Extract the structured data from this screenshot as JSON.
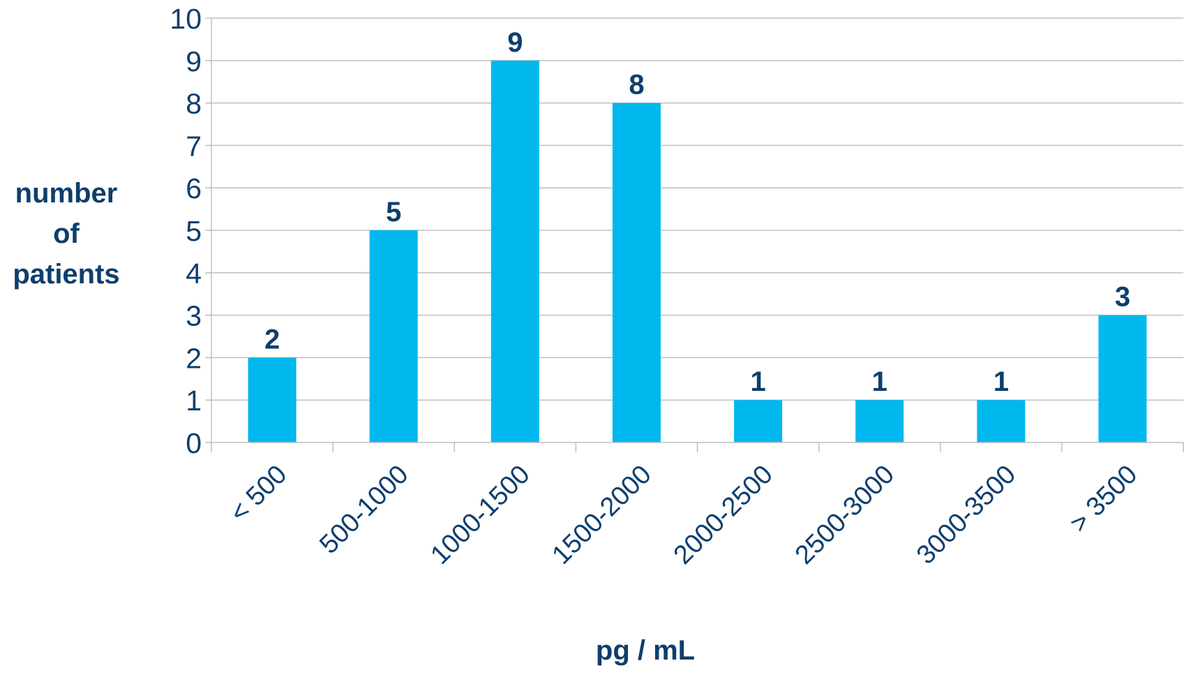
{
  "chart_data": {
    "type": "bar",
    "categories": [
      "< 500",
      "500-1000",
      "1000-1500",
      "1500-2000",
      "2000-2500",
      "2500-3000",
      "3000-3500",
      "> 3500"
    ],
    "values": [
      2,
      5,
      9,
      8,
      1,
      1,
      1,
      3
    ],
    "ylabel_lines": [
      "number",
      "of",
      "patients"
    ],
    "xlabel": "pg / mL",
    "ylim": [
      0,
      10
    ],
    "yticks": [
      "0",
      "1",
      "2",
      "3",
      "4",
      "5",
      "6",
      "7",
      "8",
      "9",
      "10"
    ],
    "grid": true,
    "legend": "none",
    "colors": {
      "bar": "#00b8ee",
      "text": "#0e3e6d",
      "grid": "#bfbfbf"
    }
  }
}
